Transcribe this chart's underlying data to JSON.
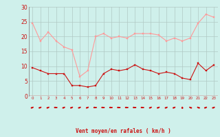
{
  "x": [
    0,
    1,
    2,
    3,
    4,
    5,
    6,
    7,
    8,
    9,
    10,
    11,
    12,
    13,
    14,
    15,
    16,
    17,
    18,
    19,
    20,
    21,
    22,
    23
  ],
  "wind_avg": [
    9.5,
    8.5,
    7.5,
    7.5,
    7.5,
    3.5,
    3.5,
    3.0,
    3.5,
    7.5,
    9.0,
    8.5,
    9.0,
    10.5,
    9.0,
    8.5,
    7.5,
    8.0,
    7.5,
    6.0,
    5.5,
    11.0,
    8.5,
    10.5
  ],
  "wind_gust": [
    24.5,
    18.5,
    21.5,
    18.5,
    16.5,
    15.5,
    6.5,
    8.5,
    20.0,
    21.0,
    19.5,
    20.0,
    19.5,
    21.0,
    21.0,
    21.0,
    20.5,
    18.5,
    19.5,
    18.5,
    19.5,
    24.5,
    27.5,
    26.5
  ],
  "xlabel": "Vent moyen/en rafales ( km/h )",
  "ylim": [
    0,
    30
  ],
  "yticks": [
    0,
    5,
    10,
    15,
    20,
    25,
    30
  ],
  "xtick_labels": [
    "0",
    "1",
    "2",
    "3",
    "4",
    "5",
    "6",
    "7",
    "8",
    "9",
    "10",
    "11",
    "12",
    "13",
    "14",
    "15",
    "16",
    "17",
    "18",
    "19",
    "20",
    "21",
    "22",
    "23"
  ],
  "bg_color": "#cff0eb",
  "grid_color": "#b0c8c4",
  "line_avg_color": "#cc1111",
  "line_gust_color": "#ff9999",
  "arrow_color": "#cc1111",
  "xlabel_color": "#cc1111",
  "tick_label_color": "#cc1111",
  "ytick_label_color": "#cc1111",
  "hline_color": "#cc1111",
  "arrow_angles": [
    225,
    225,
    225,
    180,
    225,
    225,
    225,
    225,
    180,
    180,
    180,
    180,
    180,
    180,
    180,
    225,
    225,
    225,
    225,
    270,
    315,
    315,
    225,
    225
  ]
}
